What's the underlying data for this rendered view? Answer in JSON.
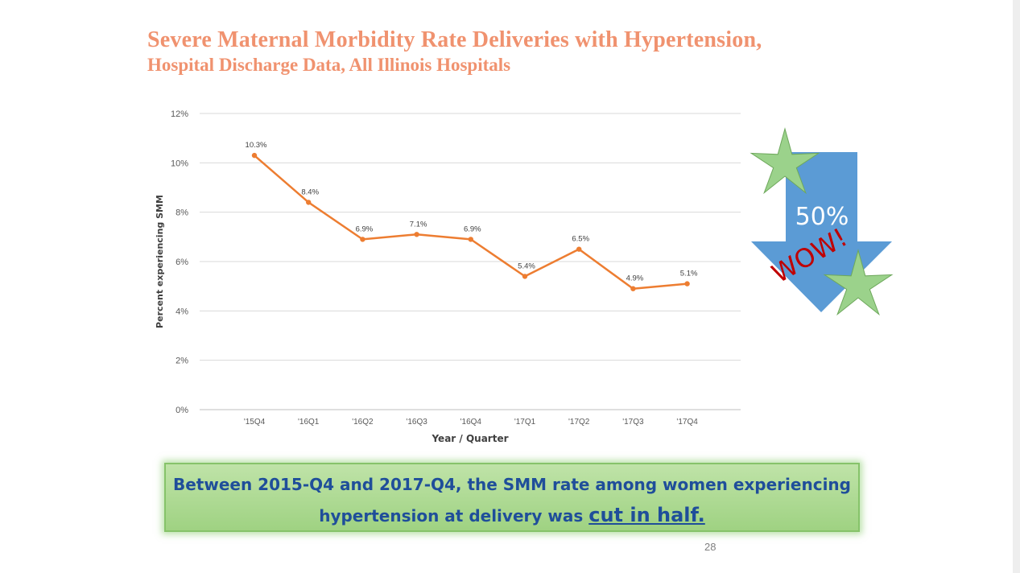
{
  "slide": {
    "title_line1": "Severe Maternal Morbidity Rate Deliveries with Hypertension,",
    "title_line2": "Hospital Discharge Data, All Illinois Hospitals",
    "page_number": "28"
  },
  "callout": {
    "text_line1": "Between 2015-Q4 and 2017-Q4, the SMM rate among women experiencing",
    "text_line2_prefix": "hypertension at delivery was ",
    "text_emphasis": "cut in half."
  },
  "graphic": {
    "arrow_label": "50%",
    "exclaim_label": "WOW!",
    "arrow_color": "#5b9bd5",
    "star_color": "#9bd28b",
    "exclaim_color": "#c00000"
  },
  "chart_data": {
    "type": "line",
    "categories": [
      "'15Q4",
      "'16Q1",
      "'16Q2",
      "'16Q3",
      "'16Q4",
      "'17Q1",
      "'17Q2",
      "'17Q3",
      "'17Q4"
    ],
    "series": [
      {
        "values": [
          10.3,
          8.4,
          6.9,
          7.1,
          6.9,
          5.4,
          6.5,
          4.9,
          5.1
        ],
        "data_labels": [
          "10.3%",
          "8.4%",
          "6.9%",
          "7.1%",
          "6.9%",
          "5.4%",
          "6.5%",
          "4.9%",
          "5.1%"
        ],
        "color": "#ed7d31"
      }
    ],
    "y_ticks": [
      "0%",
      "2%",
      "4%",
      "6%",
      "8%",
      "10%",
      "12%"
    ],
    "ylim": [
      0,
      12
    ],
    "xlabel": "Year / Quarter",
    "ylabel": "Percent experiencing SMM",
    "grid": true,
    "legend": "none"
  }
}
